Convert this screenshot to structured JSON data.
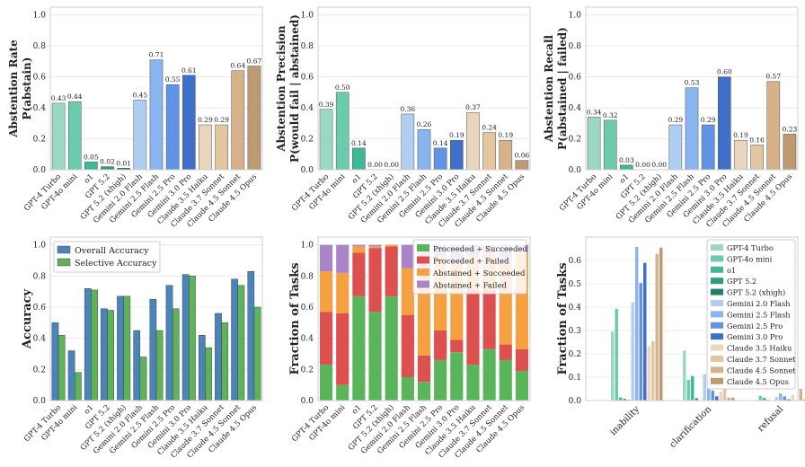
{
  "models": [
    "GPT-4 Turbo",
    "GPT-4o mini",
    "o1",
    "GPT 5.2",
    "GPT 5.2 (xhigh)",
    "Gemini 2.0 Flash",
    "Gemini 2.5 Flash",
    "Gemini 2.5 Pro",
    "Gemini 3.0 Pro",
    "Claude 3.5 Haiku",
    "Claude 3.7 Sonnet",
    "Claude 4.5 Sonnet",
    "Claude 4.5 Opus"
  ],
  "model_colors": [
    "#9ad8c4",
    "#6ccbad",
    "#3fb897",
    "#2b9f80",
    "#1f7f68",
    "#b0cdf2",
    "#88b4ef",
    "#5e93e6",
    "#3f6fc9",
    "#ead6bd",
    "#e3c5a0",
    "#d7b189",
    "#be9a72"
  ],
  "chart_data": [
    {
      "type": "bar",
      "id": "abstention-rate",
      "ylabel": [
        "Abstention Rate",
        "P(abstain)"
      ],
      "ylim": [
        0,
        1.05
      ],
      "yticks": [
        0.0,
        0.2,
        0.4,
        0.6,
        0.8,
        1.0
      ],
      "values": [
        0.43,
        0.44,
        0.05,
        0.02,
        0.01,
        0.45,
        0.71,
        0.55,
        0.61,
        0.29,
        0.29,
        0.64,
        0.67
      ],
      "labels": [
        "0.43",
        "0.44",
        "0.05",
        "0.02",
        "0.01",
        "0.45",
        "0.71",
        "0.55",
        "0.61",
        "0.29",
        "0.29",
        "0.64",
        "0.67"
      ]
    },
    {
      "type": "bar",
      "id": "abstention-precision",
      "ylabel": [
        "Abstention Precision",
        "P(would fail | abstained)"
      ],
      "ylim": [
        0,
        1.05
      ],
      "yticks": [
        0.0,
        0.2,
        0.4,
        0.6,
        0.8,
        1.0
      ],
      "values": [
        0.39,
        0.5,
        0.14,
        0.0,
        0.0,
        0.36,
        0.26,
        0.14,
        0.19,
        0.37,
        0.24,
        0.19,
        0.06
      ],
      "labels": [
        "0.39",
        "0.50",
        "0.14",
        "0.00",
        "0.00",
        "0.36",
        "0.26",
        "0.14",
        "0.19",
        "0.37",
        "0.24",
        "0.19",
        "0.06"
      ]
    },
    {
      "type": "bar",
      "id": "abstention-recall",
      "ylabel": [
        "Abstention Recall",
        "P(abstained | failed)"
      ],
      "ylim": [
        0,
        1.05
      ],
      "yticks": [
        0.0,
        0.2,
        0.4,
        0.6,
        0.8,
        1.0
      ],
      "values": [
        0.34,
        0.32,
        0.03,
        0.0,
        0.0,
        0.29,
        0.53,
        0.29,
        0.6,
        0.19,
        0.16,
        0.57,
        0.23
      ],
      "labels": [
        "0.34",
        "0.32",
        "0.03",
        "0.00",
        "0.00",
        "0.29",
        "0.53",
        "0.29",
        "0.60",
        "0.19",
        "0.16",
        "0.57",
        "0.23"
      ]
    },
    {
      "type": "bar",
      "id": "accuracy",
      "ylabel": [
        "Accuracy"
      ],
      "ylim": [
        0,
        1.05
      ],
      "yticks": [
        0.0,
        0.2,
        0.4,
        0.6,
        0.8,
        1.0
      ],
      "series": [
        {
          "name": "Overall Accuracy",
          "color": "#4a84b8",
          "values": [
            0.5,
            0.32,
            0.72,
            0.59,
            0.67,
            0.45,
            0.65,
            0.74,
            0.81,
            0.42,
            0.56,
            0.78,
            0.83
          ]
        },
        {
          "name": "Selective Accuracy",
          "color": "#5fb15a",
          "values": [
            0.42,
            0.18,
            0.71,
            0.58,
            0.67,
            0.28,
            0.45,
            0.59,
            0.8,
            0.34,
            0.5,
            0.74,
            0.6
          ]
        }
      ],
      "legend": "top-left"
    },
    {
      "type": "stacked-bar",
      "id": "fraction-of-tasks",
      "ylabel": [
        "Fraction of Tasks"
      ],
      "ylim": [
        0,
        1.05
      ],
      "yticks": [
        0.0,
        0.2,
        0.4,
        0.6,
        0.8,
        1.0
      ],
      "series": [
        {
          "name": "Proceeded + Succeeded",
          "color": "#5ab55a",
          "values": [
            0.23,
            0.1,
            0.67,
            0.57,
            0.67,
            0.15,
            0.12,
            0.26,
            0.31,
            0.23,
            0.33,
            0.26,
            0.19
          ]
        },
        {
          "name": "Proceeded + Failed",
          "color": "#dd5050",
          "values": [
            0.34,
            0.46,
            0.28,
            0.41,
            0.32,
            0.4,
            0.17,
            0.19,
            0.08,
            0.48,
            0.38,
            0.1,
            0.14
          ]
        },
        {
          "name": "Abstained + Succeeded",
          "color": "#f6a044",
          "values": [
            0.26,
            0.26,
            0.04,
            0.01,
            0.01,
            0.3,
            0.52,
            0.48,
            0.5,
            0.22,
            0.24,
            0.53,
            0.62
          ]
        },
        {
          "name": "Abstained + Failed",
          "color": "#a985c7",
          "values": [
            0.17,
            0.18,
            0.01,
            0.01,
            0.0,
            0.15,
            0.19,
            0.07,
            0.11,
            0.07,
            0.05,
            0.11,
            0.05
          ]
        }
      ],
      "legend": "top-right"
    },
    {
      "type": "grouped-bar",
      "id": "tasks-by-category",
      "ylabel": [
        "Fraction of Tasks"
      ],
      "categories": [
        "inability",
        "clarification",
        "refusal"
      ],
      "ylim": [
        0,
        0.7
      ],
      "yticks": [
        0.0,
        0.1,
        0.2,
        0.3,
        0.4,
        0.5,
        0.6
      ],
      "values_by_model": [
        [
          0.295,
          0.213,
          0.003
        ],
        [
          0.393,
          0.088,
          0.02
        ],
        [
          0.013,
          0.105,
          0.012
        ],
        [
          0.007,
          0.01,
          0.003
        ],
        [
          0.003,
          0.002,
          0.001
        ],
        [
          0.42,
          0.113,
          0.015
        ],
        [
          0.658,
          0.102,
          0.03
        ],
        [
          0.503,
          0.043,
          0.018
        ],
        [
          0.59,
          0.018,
          0.005
        ],
        [
          0.232,
          0.038,
          0.023
        ],
        [
          0.255,
          0.048,
          0.002
        ],
        [
          0.628,
          0.013,
          0.05
        ],
        [
          0.655,
          0.012,
          0.004
        ]
      ],
      "legend": "top-right"
    }
  ]
}
